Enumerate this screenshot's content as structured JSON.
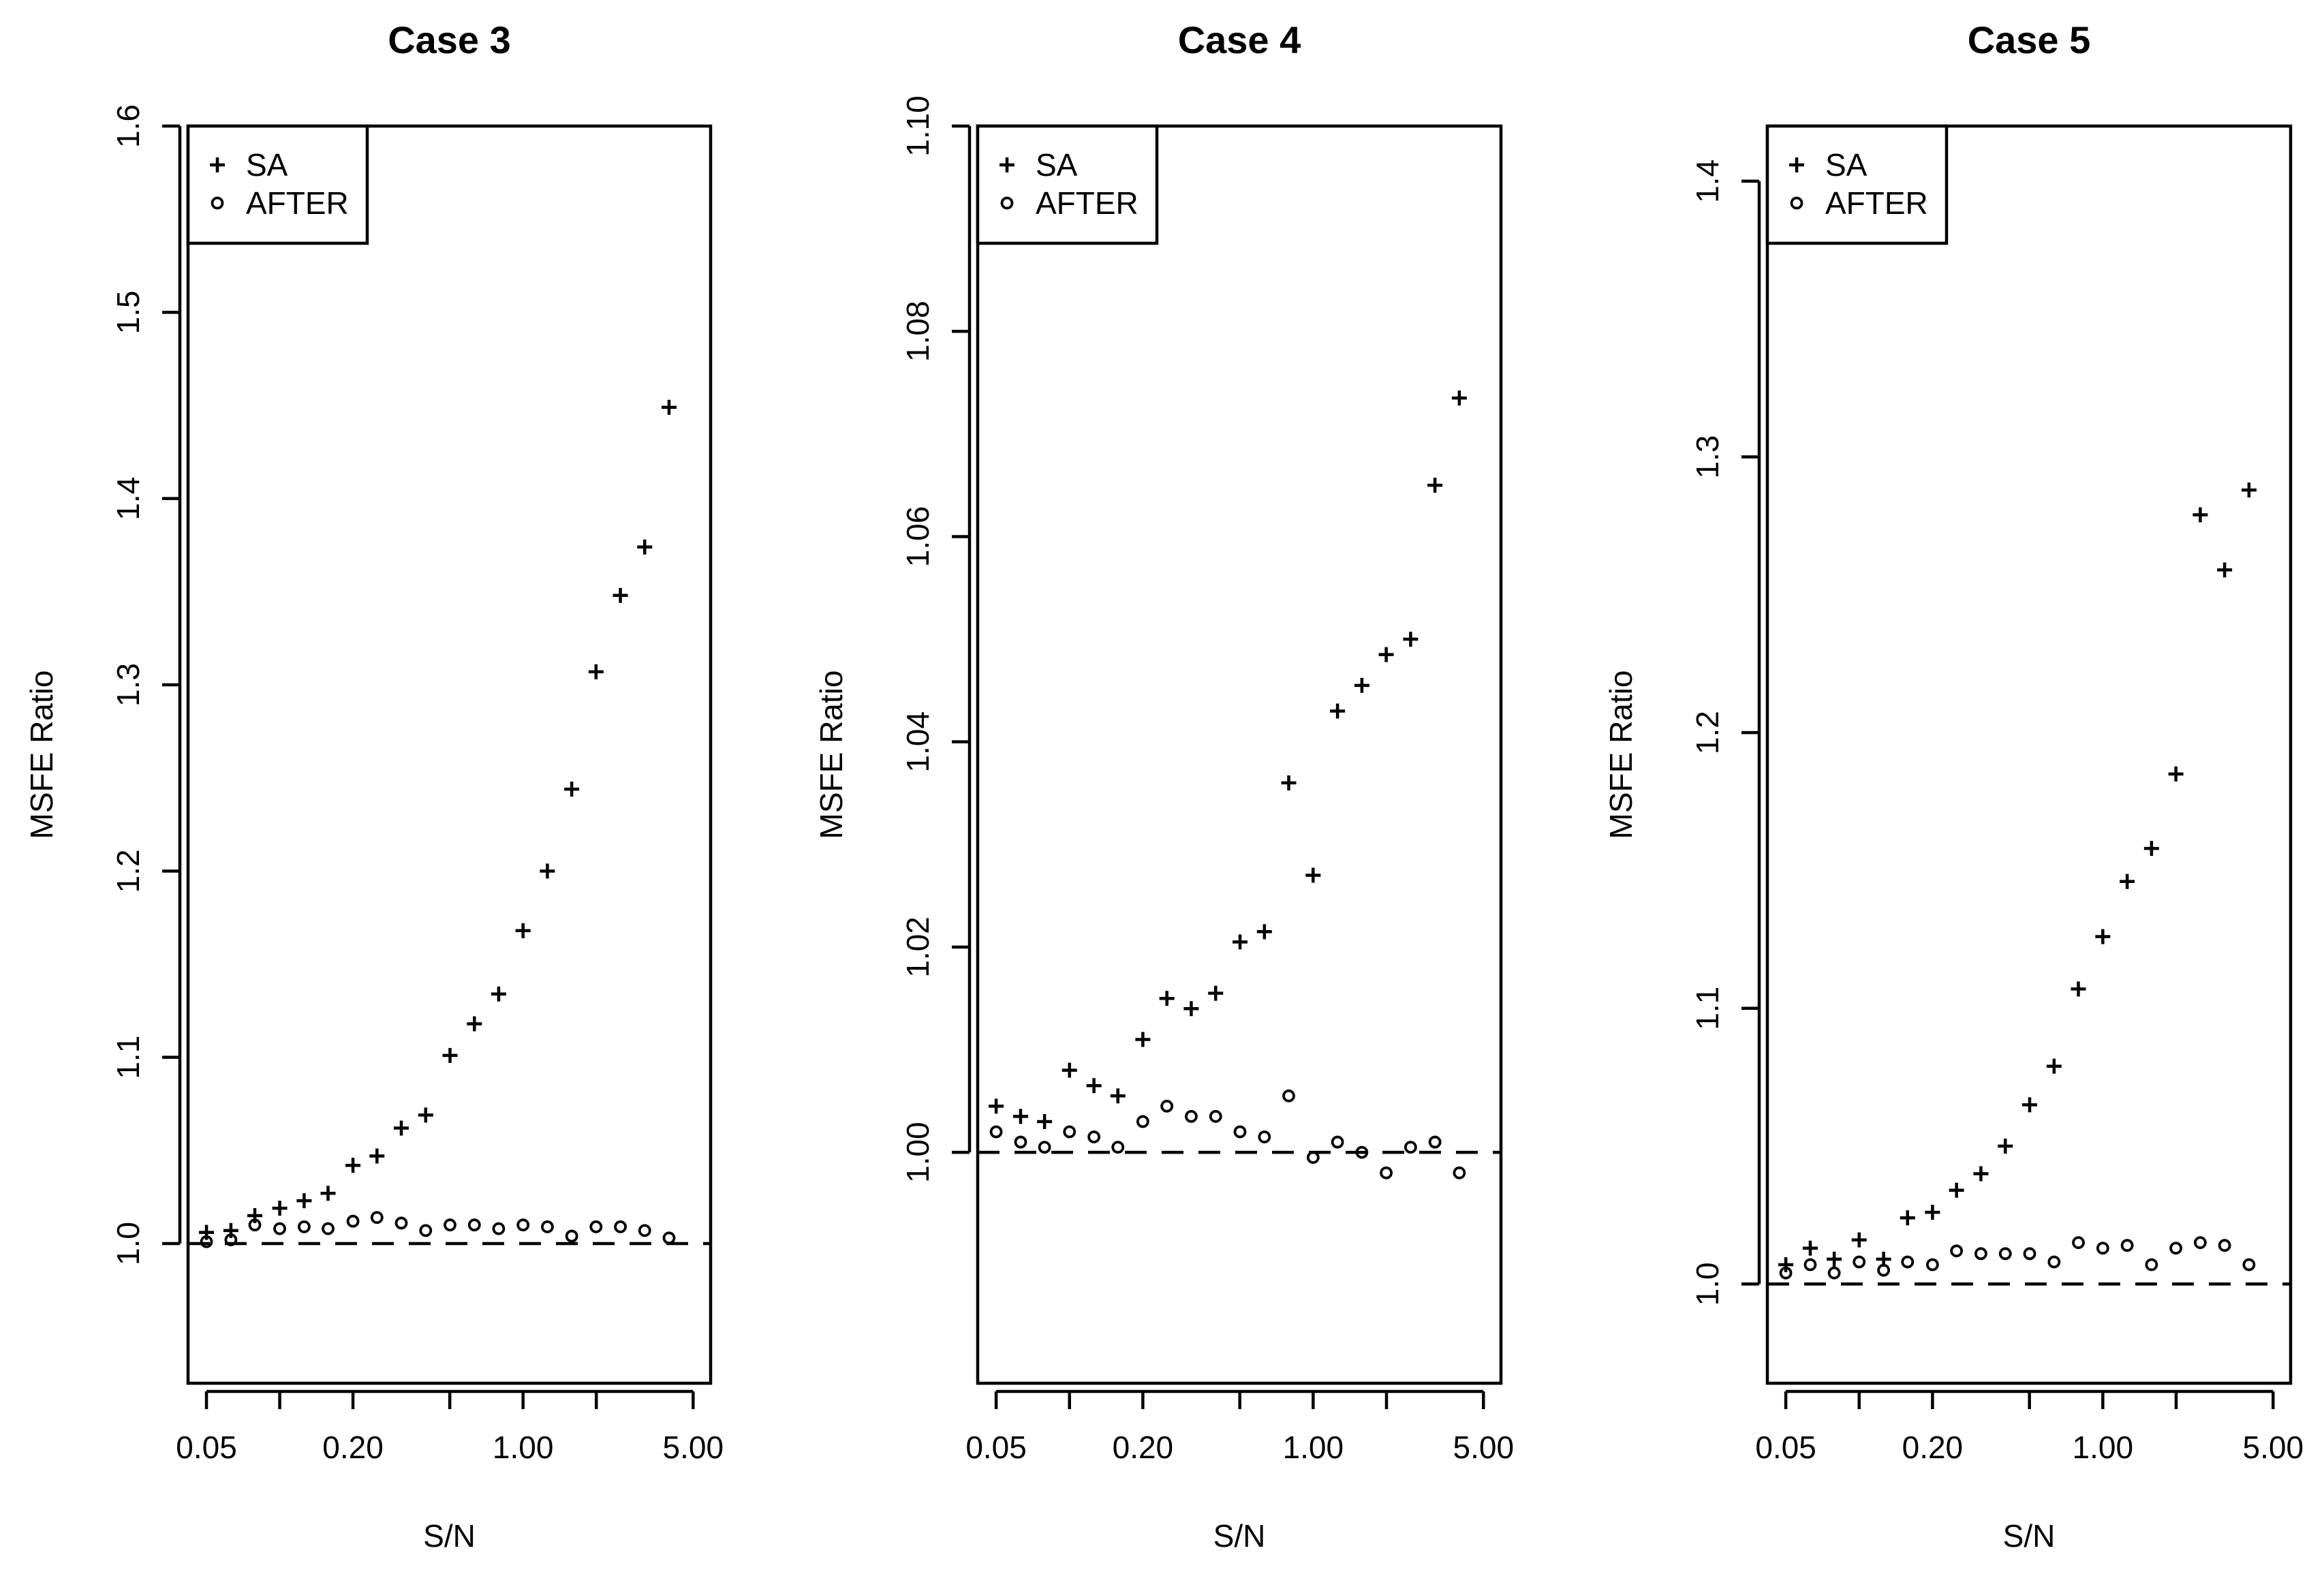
{
  "chart_data": [
    {
      "type": "scatter",
      "title": "Case 3",
      "xlabel": "S/N",
      "ylabel": "MSFE Ratio",
      "xscale": "log",
      "xticks": [
        0.05,
        0.1,
        0.2,
        0.5,
        1.0,
        2.0,
        5.0
      ],
      "xtick_labels": [
        "0.05",
        "",
        "0.20",
        "",
        "1.00",
        "",
        "5.00"
      ],
      "xlim": [
        0.042,
        5.9
      ],
      "ylim": [
        0.925,
        1.6
      ],
      "yticks": [
        1.0,
        1.1,
        1.2,
        1.3,
        1.4,
        1.5,
        1.6
      ],
      "ytick_labels": [
        "1.0",
        "1.1",
        "1.2",
        "1.3",
        "1.4",
        "1.5",
        "1.6"
      ],
      "reference_line": 1.0,
      "legend": {
        "position": "top-left",
        "entries": [
          {
            "marker": "plus",
            "label": "SA"
          },
          {
            "marker": "circle",
            "label": "AFTER"
          }
        ]
      },
      "x": [
        0.05,
        0.063,
        0.079,
        0.1,
        0.126,
        0.158,
        0.2,
        0.251,
        0.316,
        0.398,
        0.501,
        0.631,
        0.794,
        1.0,
        1.259,
        1.585,
        1.995,
        2.512,
        3.162,
        3.981,
        5.012
      ],
      "series": [
        {
          "name": "SA",
          "marker": "plus",
          "values": [
            1.006,
            1.007,
            1.015,
            1.019,
            1.023,
            1.027,
            1.042,
            1.047,
            1.062,
            1.069,
            1.101,
            1.118,
            1.134,
            1.168,
            1.2,
            1.244,
            1.307,
            1.348,
            1.374,
            1.449,
            null
          ]
        },
        {
          "name": "AFTER",
          "marker": "circle",
          "values": [
            1.001,
            1.002,
            1.01,
            1.008,
            1.009,
            1.008,
            1.012,
            1.014,
            1.011,
            1.007,
            1.01,
            1.01,
            1.008,
            1.01,
            1.009,
            1.004,
            1.009,
            1.009,
            1.007,
            1.003,
            null
          ]
        }
      ]
    },
    {
      "type": "scatter",
      "title": "Case 4",
      "xlabel": "S/N",
      "ylabel": "MSFE Ratio",
      "xscale": "log",
      "xticks": [
        0.05,
        0.1,
        0.2,
        0.5,
        1.0,
        2.0,
        5.0
      ],
      "xtick_labels": [
        "0.05",
        "",
        "0.20",
        "",
        "1.00",
        "",
        "5.00"
      ],
      "xlim": [
        0.042,
        5.9
      ],
      "ylim": [
        0.9775,
        1.1
      ],
      "yticks": [
        1.0,
        1.02,
        1.04,
        1.06,
        1.08,
        1.1
      ],
      "ytick_labels": [
        "1.00",
        "1.02",
        "1.04",
        "1.06",
        "1.08",
        "1.10"
      ],
      "reference_line": 1.0,
      "legend": {
        "position": "top-left",
        "entries": [
          {
            "marker": "plus",
            "label": "SA"
          },
          {
            "marker": "circle",
            "label": "AFTER"
          }
        ]
      },
      "x": [
        0.05,
        0.063,
        0.079,
        0.1,
        0.126,
        0.158,
        0.2,
        0.251,
        0.316,
        0.398,
        0.501,
        0.631,
        0.794,
        1.0,
        1.259,
        1.585,
        1.995,
        2.512,
        3.162,
        3.981,
        5.012
      ],
      "series": [
        {
          "name": "SA",
          "marker": "plus",
          "values": [
            1.0045,
            1.0035,
            1.003,
            1.008,
            1.0065,
            1.0055,
            1.011,
            1.015,
            1.014,
            1.0155,
            1.0205,
            1.0215,
            1.036,
            1.027,
            1.043,
            1.0455,
            1.0485,
            1.05,
            1.065,
            1.0735,
            null
          ]
        },
        {
          "name": "AFTER",
          "marker": "circle",
          "values": [
            1.002,
            1.001,
            1.0005,
            1.002,
            1.0015,
            1.0005,
            1.003,
            1.0045,
            1.0035,
            1.0035,
            1.002,
            1.0015,
            1.0055,
            0.9995,
            1.001,
            1.0,
            0.998,
            1.0005,
            1.001,
            0.998,
            null
          ]
        }
      ]
    },
    {
      "type": "scatter",
      "title": "Case 5",
      "xlabel": "S/N",
      "ylabel": "MSFE Ratio",
      "xscale": "log",
      "xticks": [
        0.05,
        0.1,
        0.2,
        0.5,
        1.0,
        2.0,
        5.0
      ],
      "xtick_labels": [
        "0.05",
        "",
        "0.20",
        "",
        "1.00",
        "",
        "5.00"
      ],
      "xlim": [
        0.042,
        5.9
      ],
      "ylim": [
        0.964,
        1.42
      ],
      "yticks": [
        1.0,
        1.1,
        1.2,
        1.3,
        1.4
      ],
      "ytick_labels": [
        "1.0",
        "1.1",
        "1.2",
        "1.3",
        "1.4"
      ],
      "reference_line": 1.0,
      "legend": {
        "position": "top-left",
        "entries": [
          {
            "marker": "plus",
            "label": "SA"
          },
          {
            "marker": "circle",
            "label": "AFTER"
          }
        ]
      },
      "x": [
        0.05,
        0.063,
        0.079,
        0.1,
        0.126,
        0.158,
        0.2,
        0.251,
        0.316,
        0.398,
        0.501,
        0.631,
        0.794,
        1.0,
        1.259,
        1.585,
        1.995,
        2.512,
        3.162,
        3.981,
        5.012
      ],
      "series": [
        {
          "name": "SA",
          "marker": "plus",
          "values": [
            1.007,
            1.013,
            1.009,
            1.016,
            1.009,
            1.024,
            1.026,
            1.034,
            1.04,
            1.05,
            1.065,
            1.079,
            1.107,
            1.126,
            1.146,
            1.158,
            1.185,
            1.279,
            1.259,
            1.288,
            null
          ]
        },
        {
          "name": "AFTER",
          "marker": "circle",
          "values": [
            1.004,
            1.007,
            1.004,
            1.008,
            1.005,
            1.008,
            1.007,
            1.012,
            1.011,
            1.011,
            1.011,
            1.008,
            1.015,
            1.013,
            1.014,
            1.007,
            1.013,
            1.015,
            1.014,
            1.007,
            null
          ]
        }
      ]
    }
  ]
}
